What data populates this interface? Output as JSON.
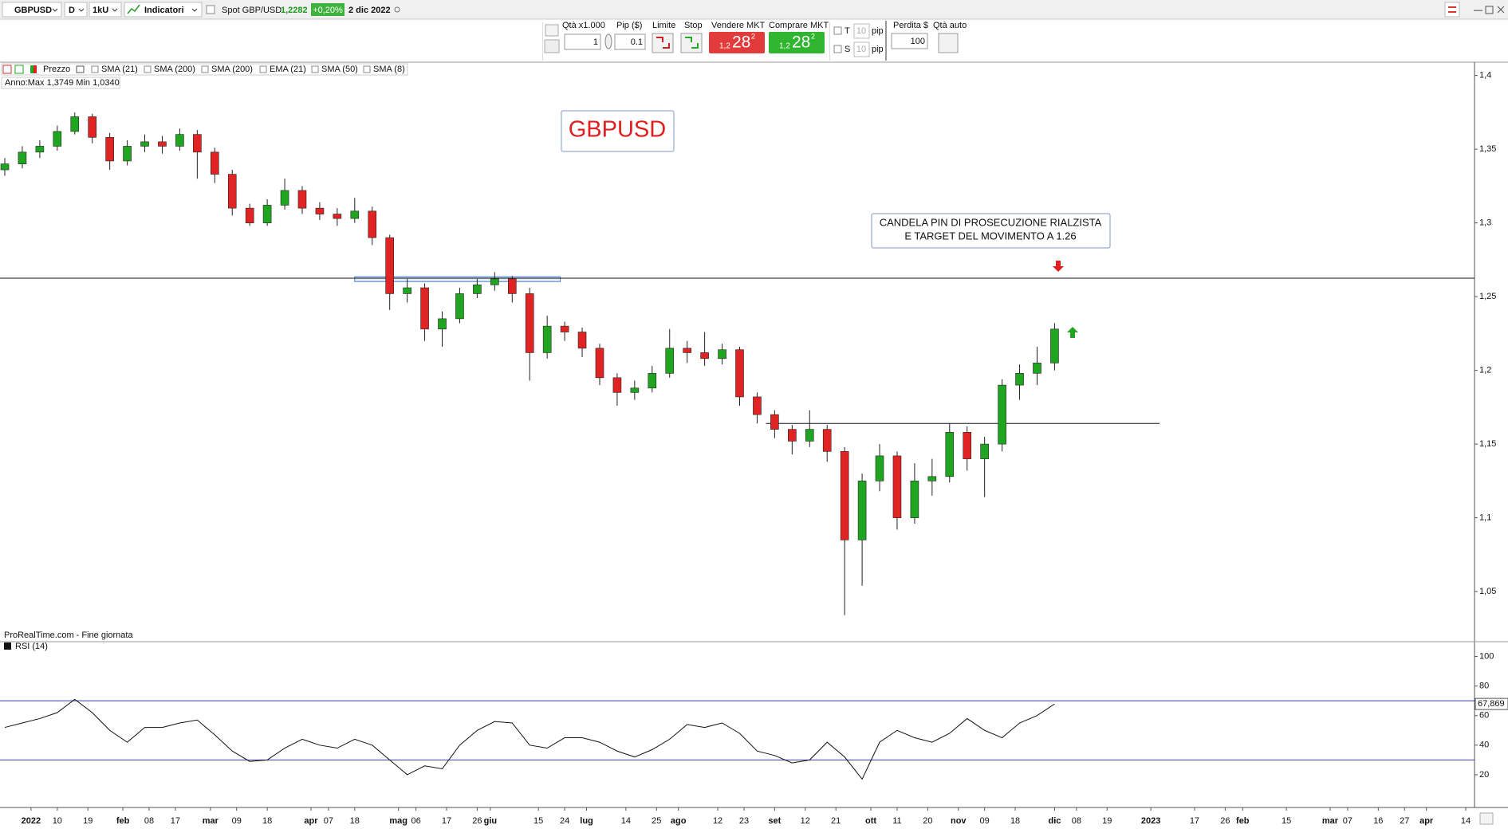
{
  "toolbar": {
    "symbol": "GBPUSD",
    "period": "D",
    "units": "1kU",
    "indicators": "Indicatori",
    "spot_label": "Spot GBP/USD",
    "spot_price": "1,2282",
    "change": "+0,20%",
    "date": "2 dic 2022"
  },
  "order_panel": {
    "qty_label": "Qtà x1.000",
    "qty": "1",
    "pip_label": "Pip ($)",
    "pip": "0.1",
    "limit": "Limite",
    "stop": "Stop",
    "sell_label": "Vendere MKT",
    "sell_price": [
      "1,2",
      "28",
      "2"
    ],
    "buy_label": "Comprare MKT",
    "buy_price": [
      "1,2",
      "28",
      "2"
    ],
    "t_label": "T",
    "t_value": "10",
    "t_unit": "pip",
    "s_label": "S",
    "s_value": "10",
    "s_unit": "pip",
    "loss_label": "Perdita $",
    "loss": "100",
    "auto_qty": "Qtà auto"
  },
  "chart_data": {
    "type": "candlestick",
    "title": "GBPUSD",
    "annotation": [
      "CANDELA PIN DI PROSECUZIONE RIALZISTA",
      "E TARGET DEL MOVIMENTO A 1.26"
    ],
    "legend": [
      "Prezzo",
      "SMA (21)",
      "SMA (200)",
      "SMA (200)",
      "EMA (21)",
      "SMA (50)",
      "SMA (8)"
    ],
    "range_label": "Anno:Max 1,3749 Min 1,0340",
    "source": "ProRealTime.com - Fine giornata",
    "up_color": "#1fa51f",
    "down_color": "#e02424",
    "x": [
      0,
      4,
      8,
      12,
      16,
      20,
      24,
      28,
      32,
      36,
      40,
      44,
      48,
      52,
      56,
      60,
      64,
      68,
      72,
      76,
      80,
      84,
      88,
      92,
      96,
      100,
      104,
      108,
      112,
      116,
      120,
      124,
      128,
      132,
      136,
      140,
      144,
      148,
      152,
      156,
      160,
      164,
      168,
      172,
      176,
      180,
      184,
      188,
      192,
      196,
      200,
      204,
      208,
      212,
      216,
      220,
      224,
      228,
      232,
      236,
      240
    ],
    "open": [
      1.336,
      1.34,
      1.348,
      1.352,
      1.362,
      1.372,
      1.358,
      1.342,
      1.352,
      1.355,
      1.352,
      1.36,
      1.348,
      1.333,
      1.31,
      1.3,
      1.312,
      1.322,
      1.31,
      1.306,
      1.303,
      1.308,
      1.29,
      1.252,
      1.256,
      1.228,
      1.235,
      1.252,
      1.258,
      1.262,
      1.252,
      1.212,
      1.23,
      1.226,
      1.215,
      1.195,
      1.185,
      1.188,
      1.198,
      1.215,
      1.212,
      1.208,
      1.214,
      1.182,
      1.17,
      1.16,
      1.152,
      1.16,
      1.145,
      1.085,
      1.125,
      1.142,
      1.1,
      1.125,
      1.128,
      1.158,
      1.14,
      1.15,
      1.19,
      1.198,
      1.205
    ],
    "high": [
      1.344,
      1.352,
      1.356,
      1.366,
      1.3749,
      1.374,
      1.361,
      1.356,
      1.36,
      1.359,
      1.364,
      1.363,
      1.351,
      1.336,
      1.313,
      1.316,
      1.33,
      1.325,
      1.314,
      1.31,
      1.317,
      1.311,
      1.292,
      1.262,
      1.259,
      1.24,
      1.256,
      1.262,
      1.2666,
      1.264,
      1.256,
      1.237,
      1.233,
      1.229,
      1.218,
      1.198,
      1.193,
      1.203,
      1.228,
      1.22,
      1.226,
      1.218,
      1.216,
      1.185,
      1.173,
      1.163,
      1.173,
      1.163,
      1.148,
      1.13,
      1.15,
      1.145,
      1.137,
      1.14,
      1.164,
      1.162,
      1.155,
      1.194,
      1.204,
      1.216,
      1.232
    ],
    "low": [
      1.332,
      1.337,
      1.344,
      1.349,
      1.36,
      1.354,
      1.336,
      1.339,
      1.348,
      1.347,
      1.349,
      1.33,
      1.327,
      1.305,
      1.298,
      1.298,
      1.309,
      1.306,
      1.302,
      1.298,
      1.3,
      1.285,
      1.241,
      1.246,
      1.22,
      1.216,
      1.232,
      1.249,
      1.254,
      1.246,
      1.193,
      1.208,
      1.22,
      1.209,
      1.19,
      1.176,
      1.18,
      1.185,
      1.195,
      1.205,
      1.203,
      1.204,
      1.176,
      1.164,
      1.154,
      1.143,
      1.148,
      1.138,
      1.034,
      1.054,
      1.118,
      1.092,
      1.096,
      1.115,
      1.124,
      1.132,
      1.114,
      1.145,
      1.18,
      1.19,
      1.2
    ],
    "close": [
      1.34,
      1.348,
      1.352,
      1.362,
      1.372,
      1.358,
      1.342,
      1.352,
      1.355,
      1.352,
      1.36,
      1.348,
      1.333,
      1.31,
      1.3,
      1.312,
      1.322,
      1.31,
      1.306,
      1.303,
      1.308,
      1.29,
      1.252,
      1.256,
      1.228,
      1.235,
      1.252,
      1.258,
      1.262,
      1.252,
      1.212,
      1.23,
      1.226,
      1.215,
      1.195,
      1.185,
      1.188,
      1.198,
      1.215,
      1.212,
      1.208,
      1.214,
      1.182,
      1.17,
      1.16,
      1.152,
      1.16,
      1.145,
      1.085,
      1.125,
      1.142,
      1.1,
      1.125,
      1.128,
      1.158,
      1.14,
      1.15,
      1.19,
      1.198,
      1.205,
      1.228
    ],
    "xlim": [
      0,
      336
    ],
    "xticks": [
      {
        "value": 6,
        "label": "2022"
      },
      {
        "value": 12,
        "label": "10"
      },
      {
        "value": 19,
        "label": "19"
      },
      {
        "value": 27,
        "label": "feb"
      },
      {
        "value": 33,
        "label": "08"
      },
      {
        "value": 39,
        "label": "17"
      },
      {
        "value": 47,
        "label": "mar"
      },
      {
        "value": 53,
        "label": "09"
      },
      {
        "value": 60,
        "label": "18"
      },
      {
        "value": 70,
        "label": "apr"
      },
      {
        "value": 74,
        "label": "07"
      },
      {
        "value": 80,
        "label": "18"
      },
      {
        "value": 90,
        "label": "mag"
      },
      {
        "value": 94,
        "label": "06"
      },
      {
        "value": 101,
        "label": "17"
      },
      {
        "value": 108,
        "label": "26"
      },
      {
        "value": 111,
        "label": "giu"
      },
      {
        "value": 122,
        "label": "15"
      },
      {
        "value": 128,
        "label": "24"
      },
      {
        "value": 133,
        "label": "lug"
      },
      {
        "value": 142,
        "label": "14"
      },
      {
        "value": 149,
        "label": "25"
      },
      {
        "value": 154,
        "label": "ago"
      },
      {
        "value": 163,
        "label": "12"
      },
      {
        "value": 169,
        "label": "23"
      },
      {
        "value": 176,
        "label": "set"
      },
      {
        "value": 183,
        "label": "12"
      },
      {
        "value": 190,
        "label": "21"
      },
      {
        "value": 198,
        "label": "ott"
      },
      {
        "value": 204,
        "label": "11"
      },
      {
        "value": 211,
        "label": "20"
      },
      {
        "value": 218,
        "label": "nov"
      },
      {
        "value": 224,
        "label": "09"
      },
      {
        "value": 231,
        "label": "18"
      },
      {
        "value": 240,
        "label": "dic"
      },
      {
        "value": 245,
        "label": "08"
      },
      {
        "value": 252,
        "label": "19"
      },
      {
        "value": 262,
        "label": "2023"
      },
      {
        "value": 272,
        "label": "17"
      },
      {
        "value": 279,
        "label": "26"
      },
      {
        "value": 283,
        "label": "feb"
      },
      {
        "value": 293,
        "label": "15"
      },
      {
        "value": 303,
        "label": "mar"
      },
      {
        "value": 307,
        "label": "07"
      },
      {
        "value": 314,
        "label": "16"
      },
      {
        "value": 320,
        "label": "27"
      },
      {
        "value": 325,
        "label": "apr"
      },
      {
        "value": 334,
        "label": "14"
      }
    ],
    "ylim": [
      1.016,
      1.409
    ],
    "yticks": [
      {
        "value": 1.05,
        "label": "1,05"
      },
      {
        "value": 1.1,
        "label": "1,1"
      },
      {
        "value": 1.15,
        "label": "1,15"
      },
      {
        "value": 1.2,
        "label": "1,2"
      },
      {
        "value": 1.25,
        "label": "1,25"
      },
      {
        "value": 1.3,
        "label": "1,3"
      },
      {
        "value": 1.35,
        "label": "1,35"
      },
      {
        "value": 1.4,
        "label": "1,4"
      }
    ],
    "hlines": [
      {
        "value": 1.2625
      },
      {
        "value": 1.164,
        "x": [
          174,
          264
        ]
      }
    ],
    "zone": {
      "x": [
        80,
        127
      ],
      "y": [
        1.2602,
        1.2635
      ],
      "color": "#4a7fd0"
    },
    "rsi": {
      "type": "line",
      "name": "RSI (14)",
      "color": "#111111",
      "level_color": "#3a3aa0",
      "ylim": [
        0,
        110
      ],
      "yticks": [
        20,
        40,
        60,
        80,
        100
      ],
      "levels": [
        70,
        30
      ],
      "values": [
        52,
        55,
        58,
        62,
        71,
        62,
        50,
        42,
        52,
        52,
        55,
        57,
        47,
        36,
        29,
        30,
        38,
        44,
        40,
        38,
        44,
        40,
        30,
        20,
        26,
        24,
        40,
        50,
        56,
        55,
        40,
        38,
        45,
        45,
        42,
        36,
        32,
        37,
        44,
        54,
        52,
        55,
        48,
        36,
        33,
        28,
        30,
        42,
        32,
        17,
        42,
        50,
        45,
        42,
        48,
        58,
        50,
        45,
        55,
        60,
        67.869
      ],
      "value_labels": [
        null,
        null,
        null,
        null,
        null,
        null,
        null,
        null,
        null,
        null,
        null,
        null,
        null,
        null,
        null,
        null,
        null,
        null,
        null,
        null,
        null,
        null,
        null,
        null,
        null,
        null,
        null,
        null,
        null,
        null,
        null,
        null,
        null,
        null,
        null,
        null,
        null,
        null,
        null,
        null,
        null,
        null,
        null,
        null,
        null,
        null,
        null,
        null,
        null,
        null,
        null,
        null,
        null,
        null,
        null,
        null,
        null,
        null,
        null,
        null,
        "67,869"
      ]
    }
  }
}
